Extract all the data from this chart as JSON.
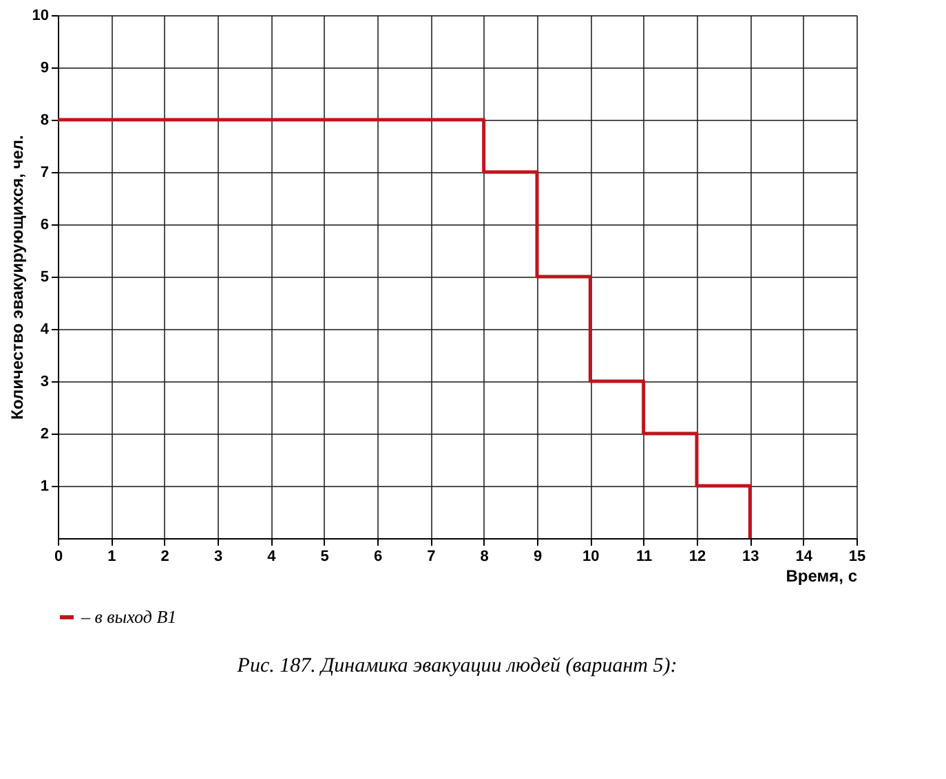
{
  "chart_data": {
    "type": "step",
    "title": "Рис. 187. Динамика эвакуации людей (вариант 5):",
    "xlabel": "Время, с",
    "ylabel": "Количество эвакуирующихся, чел.",
    "x": [
      0,
      8,
      9,
      10,
      11,
      12,
      13
    ],
    "series": [
      {
        "name": "– в выход В1",
        "color": "#c0141c",
        "values": [
          8,
          7,
          5,
          3,
          2,
          1,
          0
        ]
      }
    ],
    "xlim": [
      0,
      15
    ],
    "xticks": [
      0,
      1,
      2,
      3,
      4,
      5,
      6,
      7,
      8,
      9,
      10,
      11,
      12,
      13,
      14,
      15
    ],
    "ylim": [
      0,
      10
    ],
    "yticks": [
      1,
      2,
      3,
      4,
      5,
      6,
      7,
      8,
      9,
      10
    ],
    "grid": true,
    "legend": "bottom"
  }
}
